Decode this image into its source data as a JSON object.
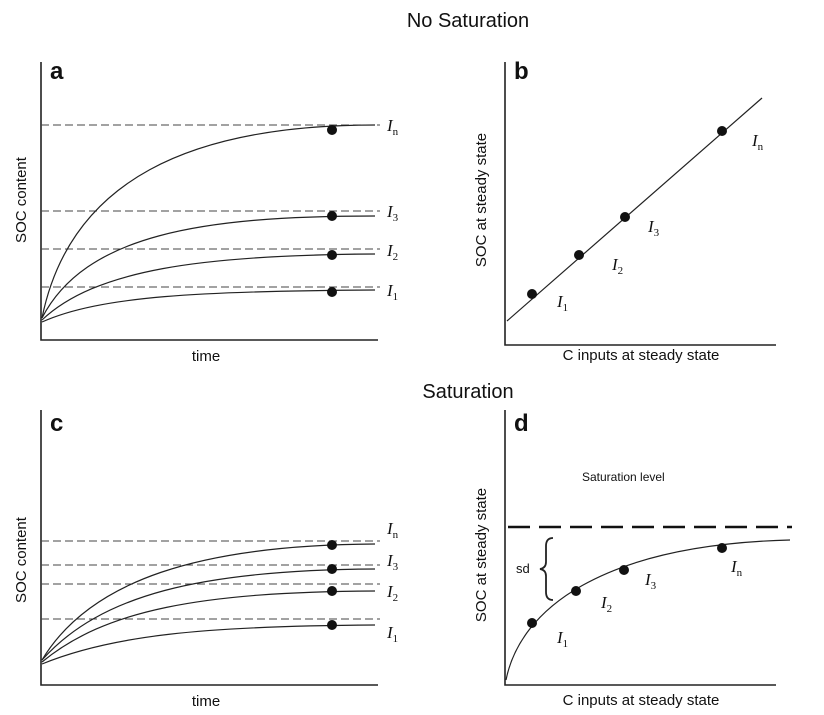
{
  "titles": {
    "top": "No Saturation",
    "bottom": "Saturation"
  },
  "panels": {
    "a": {
      "letter": "a",
      "xlabel": "time",
      "ylabel": "SOC content",
      "curves": [
        {
          "label": "I",
          "sub": "n"
        },
        {
          "label": "I",
          "sub": "3"
        },
        {
          "label": "I",
          "sub": "2"
        },
        {
          "label": "I",
          "sub": "1"
        }
      ]
    },
    "b": {
      "letter": "b",
      "xlabel": "C inputs at steady state",
      "ylabel": "SOC at steady state",
      "points": [
        {
          "label": "I",
          "sub": "1"
        },
        {
          "label": "I",
          "sub": "2"
        },
        {
          "label": "I",
          "sub": "3"
        },
        {
          "label": "I",
          "sub": "n"
        }
      ]
    },
    "c": {
      "letter": "c",
      "xlabel": "time",
      "ylabel": "SOC content",
      "curves": [
        {
          "label": "I",
          "sub": "n"
        },
        {
          "label": "I",
          "sub": "3"
        },
        {
          "label": "I",
          "sub": "2"
        },
        {
          "label": "I",
          "sub": "1"
        }
      ]
    },
    "d": {
      "letter": "d",
      "xlabel": "C inputs at steady state",
      "ylabel": "SOC at steady state",
      "saturation_label": "Saturation level",
      "sd_label": "sd",
      "points": [
        {
          "label": "I",
          "sub": "1"
        },
        {
          "label": "I",
          "sub": "2"
        },
        {
          "label": "I",
          "sub": "3"
        },
        {
          "label": "I",
          "sub": "n"
        }
      ]
    }
  }
}
